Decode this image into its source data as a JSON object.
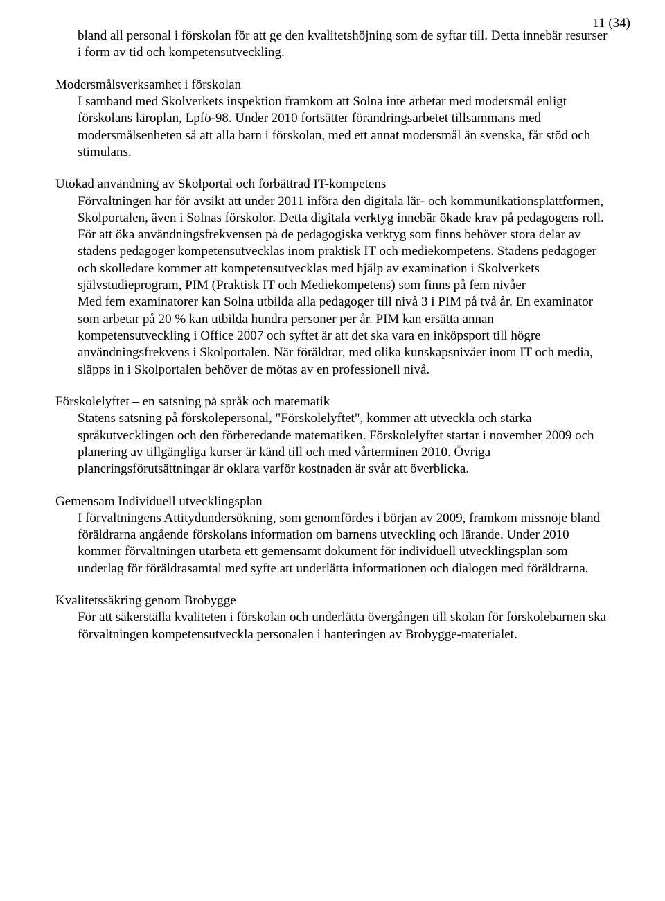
{
  "page_number": "11 (34)",
  "sections": {
    "intro_cont": {
      "body": "bland all personal i förskolan för att ge den kvalitetshöjning som de syftar till. Detta innebär resurser i form av tid och kompetensutveckling."
    },
    "modersmal": {
      "lead": "Modersmålsverksamhet i förskolan",
      "body": "I samband med Skolverkets inspektion framkom att Solna inte arbetar med modersmål enligt förskolans läroplan, Lpfö-98. Under 2010 fortsätter förändringsarbetet tillsammans med modersmålsenheten så att alla barn i förskolan, med ett annat modersmål än svenska, får stöd och stimulans."
    },
    "skolportal": {
      "lead": "Utökad användning av Skolportal och förbättrad IT-kompetens",
      "body1": "Förvaltningen har för avsikt att under 2011 införa den digitala lär- och kommunikationsplattformen, Skolportalen, även i Solnas förskolor. Detta digitala verktyg innebär ökade krav på pedagogens roll. För att öka användningsfrekvensen på de pedagogiska verktyg som finns behöver stora delar av stadens pedagoger kompetensutvecklas inom praktisk IT och mediekompetens. Stadens pedagoger och skolledare kommer att kompetensutvecklas med hjälp av examination i Skolverkets självstudieprogram, PIM (Praktisk IT och Mediekompetens) som finns på fem nivåer",
      "body2": "Med fem examinatorer kan Solna utbilda alla pedagoger till nivå 3 i PIM på två år. En examinator som arbetar på 20 % kan utbilda hundra personer per år. PIM kan ersätta annan kompetensutveckling i Office 2007 och syftet är att det ska vara en inköpsport till högre användningsfrekvens i Skolportalen. När föräldrar, med olika kunskapsnivåer inom IT och media, släpps in i Skolportalen behöver de mötas av en professionell nivå."
    },
    "forskolelyftet": {
      "lead": "Förskolelyftet – en satsning på språk och matematik",
      "body": "Statens satsning på förskolepersonal, \"Förskolelyftet\", kommer att utveckla och stärka språkutvecklingen och den förberedande matematiken. Förskolelyftet startar i november 2009 och planering av tillgängliga kurser är känd till och med vårterminen 2010. Övriga planeringsförutsättningar är oklara varför kostnaden är svår att överblicka."
    },
    "iup": {
      "lead": "Gemensam Individuell utvecklingsplan",
      "body": "I förvaltningens Attitydundersökning, som genomfördes i början av 2009, framkom missnöje bland föräldrarna angående förskolans information om barnens utveckling och lärande. Under 2010 kommer förvaltningen utarbeta ett gemensamt dokument för individuell utvecklingsplan som underlag för föräldrasamtal med syfte att underlätta informationen och dialogen med föräldrarna."
    },
    "brobygge": {
      "lead": "Kvalitetssäkring genom Brobygge",
      "body": "För att säkerställa kvaliteten i förskolan och underlätta övergången till skolan för förskolebarnen ska förvaltningen kompetensutveckla personalen i hanteringen av Brobygge-materialet."
    }
  }
}
